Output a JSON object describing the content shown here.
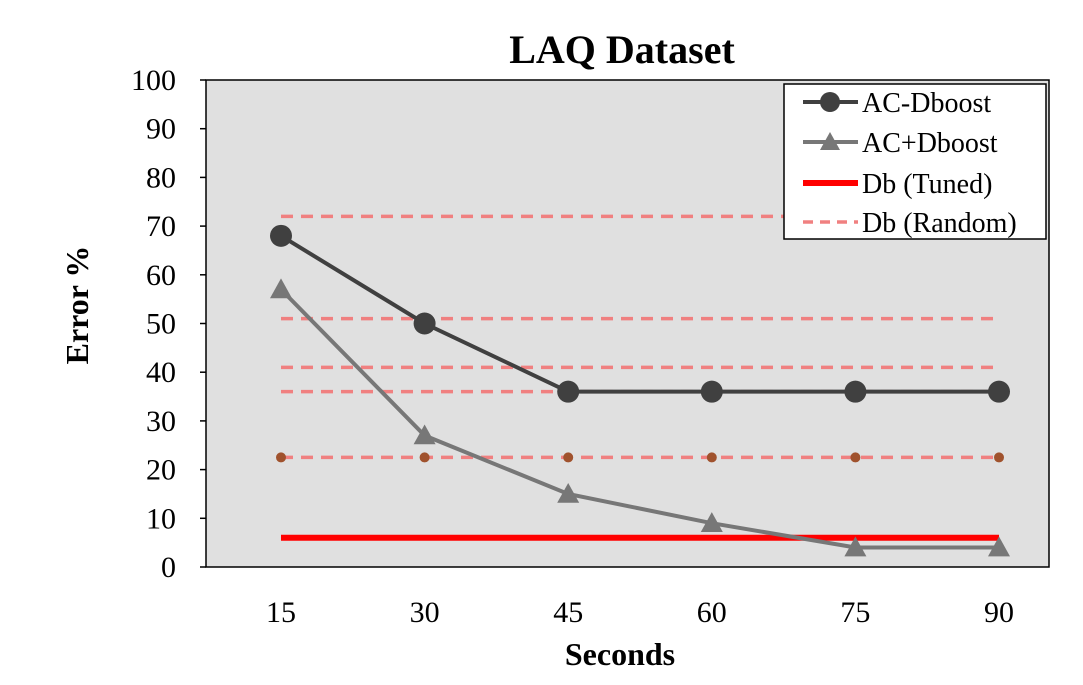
{
  "chart_data": {
    "type": "line",
    "title": "LAQ Dataset",
    "xlabel": "Seconds",
    "ylabel": "Error %",
    "x": [
      15,
      30,
      45,
      60,
      75,
      90
    ],
    "ylim": [
      0,
      100
    ],
    "yticks": [
      0,
      10,
      20,
      30,
      40,
      50,
      60,
      70,
      80,
      90,
      100
    ],
    "grid": false,
    "legend_position": "top-right",
    "series": [
      {
        "name": "AC-Dboost",
        "values": [
          68,
          50,
          36,
          36,
          36,
          36
        ],
        "color": "#404040",
        "marker": "circle",
        "style": "solid"
      },
      {
        "name": "AC+Dboost",
        "values": [
          57,
          27,
          15,
          9,
          4,
          4
        ],
        "color": "#777777",
        "marker": "triangle",
        "style": "solid"
      },
      {
        "name": "Db (Tuned)",
        "values": [
          6,
          6,
          6,
          6,
          6,
          6
        ],
        "color": "#ff0000",
        "marker": "none",
        "style": "solid"
      },
      {
        "name": "Db (Random)",
        "lines": [
          72,
          51,
          41,
          36,
          22.5
        ],
        "dots": [
          22.5,
          22.5,
          22.5,
          22.5,
          22.5,
          22.5
        ],
        "color": "#f08080",
        "dot_color": "#a0522d",
        "marker": "none",
        "style": "dashed"
      }
    ]
  }
}
